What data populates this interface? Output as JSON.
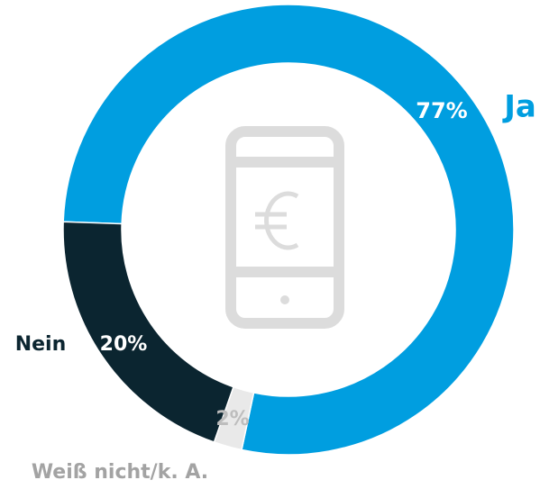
{
  "chart_data": {
    "type": "donut",
    "categories": [
      "Ja",
      "Weiß nicht/k. A.",
      "Nein"
    ],
    "values": [
      77,
      2,
      20
    ],
    "value_labels": [
      "77%",
      "2%",
      "20%"
    ],
    "colors": [
      "#009ee0",
      "#e9e9e9",
      "#0b2530"
    ]
  }
}
